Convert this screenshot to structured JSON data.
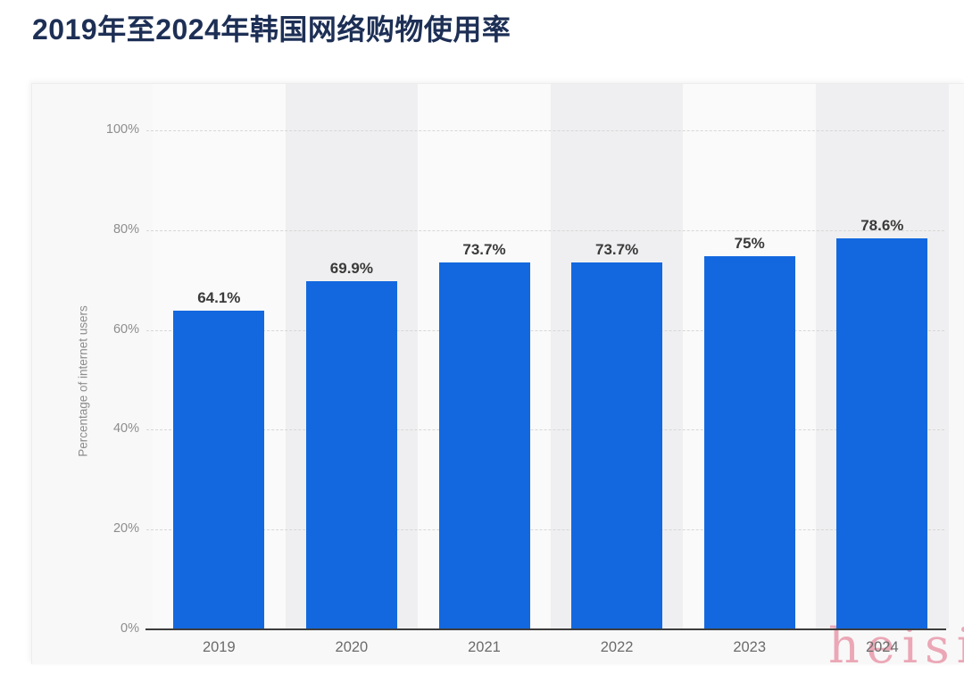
{
  "page": {
    "title": "2019年至2024年韩国网络购物使用率",
    "watermark": "heisi"
  },
  "chart_data": {
    "type": "bar",
    "title": "2019年至2024年韩国网络购物使用率",
    "categories": [
      "2019",
      "2020",
      "2021",
      "2022",
      "2023",
      "2024"
    ],
    "values": [
      64.1,
      69.9,
      73.7,
      73.7,
      75,
      78.6
    ],
    "value_labels": [
      "64.1%",
      "69.9%",
      "73.7%",
      "73.7%",
      "75%",
      "78.6%"
    ],
    "xlabel": "",
    "ylabel": "Percentage of internet users",
    "ylim": [
      0,
      100
    ],
    "yticks": [
      0,
      20,
      40,
      60,
      80,
      100
    ],
    "ytick_labels": [
      "0%",
      "20%",
      "40%",
      "60%",
      "80%",
      "100%"
    ],
    "grid": true,
    "legend": false,
    "bar_color": "#1368df",
    "band_colors": [
      "#fafafa",
      "#efeff1"
    ],
    "gridline_color": "#d7d7d7",
    "axis_line_color": "#3d3d3d"
  },
  "colors": {
    "page_bg": "#ffffff",
    "card_bg": "#f8f8f8",
    "title": "#1d2f55",
    "value_label": "#3a3a3a",
    "tick_label": "#8d8d8d",
    "x_label": "#6b6b6b",
    "watermark": "#e994a6"
  }
}
